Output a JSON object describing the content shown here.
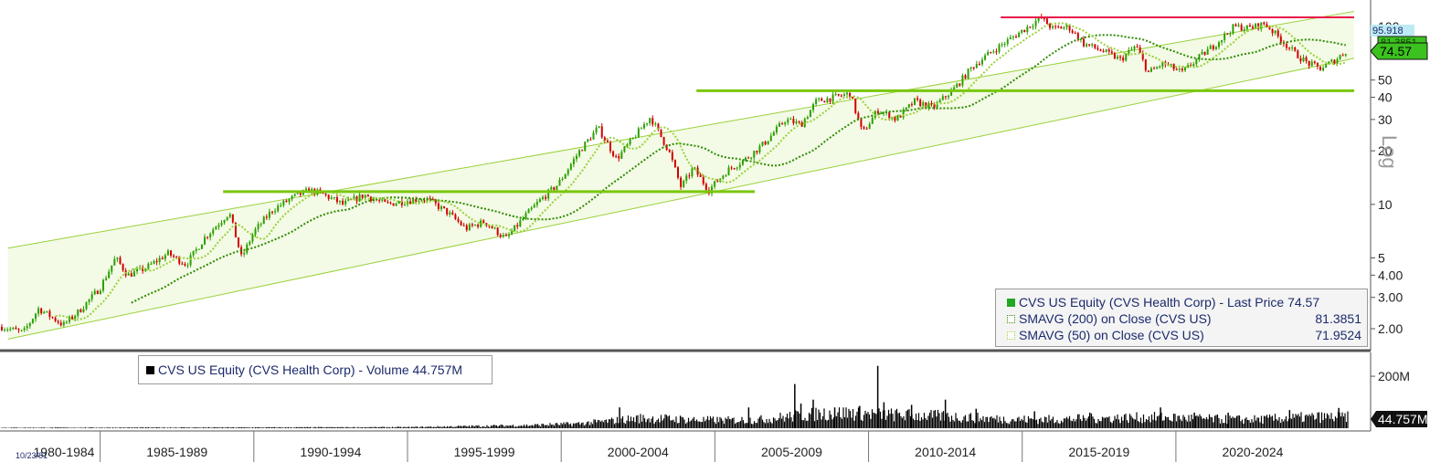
{
  "chart_data": [
    {
      "type": "candlestick",
      "series_name": "CVS US Equity (CVS Health Corp) - Last Price",
      "last_price": 74.57,
      "scale": "log",
      "scale_label": "Log",
      "ylim": [
        1.7,
        130
      ],
      "y_ticks": [
        {
          "value": 2,
          "label": "2.00"
        },
        {
          "value": 3,
          "label": "3.00"
        },
        {
          "value": 4,
          "label": "4.00"
        },
        {
          "value": 5,
          "label": "5"
        },
        {
          "value": 10,
          "label": "10"
        },
        {
          "value": 20,
          "label": "20"
        },
        {
          "value": 30,
          "label": "30"
        },
        {
          "value": 40,
          "label": "40"
        },
        {
          "value": 50,
          "label": "50"
        },
        {
          "value": 100,
          "label": "100"
        }
      ],
      "x_periods": [
        "1980-1984",
        "1985-1989",
        "1990-1994",
        "1995-1999",
        "2000-2004",
        "2005-2009",
        "2010-2014",
        "2015-2019",
        "2020-2024"
      ],
      "x_start_date": "10/23/81",
      "price_path": [
        [
          1981.8,
          2.05
        ],
        [
          1982.5,
          1.9
        ],
        [
          1983.0,
          2.6
        ],
        [
          1983.8,
          2.1
        ],
        [
          1984.3,
          2.5
        ],
        [
          1985.0,
          3.4
        ],
        [
          1985.5,
          5.0
        ],
        [
          1985.9,
          4.0
        ],
        [
          1986.5,
          4.4
        ],
        [
          1987.2,
          5.3
        ],
        [
          1987.8,
          4.6
        ],
        [
          1988.4,
          6.5
        ],
        [
          1989.2,
          9.0
        ],
        [
          1989.6,
          5.0
        ],
        [
          1990.0,
          7.0
        ],
        [
          1990.6,
          9.3
        ],
        [
          1991.3,
          11.0
        ],
        [
          1991.8,
          12.0
        ],
        [
          1992.2,
          11.5
        ],
        [
          1992.9,
          10.0
        ],
        [
          1993.6,
          11.3
        ],
        [
          1994.3,
          10.0
        ],
        [
          1995.0,
          10.5
        ],
        [
          1995.6,
          10.8
        ],
        [
          1996.3,
          9.0
        ],
        [
          1996.9,
          7.3
        ],
        [
          1997.5,
          8.0
        ],
        [
          1998.2,
          6.4
        ],
        [
          1998.8,
          8.5
        ],
        [
          1999.3,
          10.5
        ],
        [
          1999.9,
          13.0
        ],
        [
          2000.6,
          20.0
        ],
        [
          2001.2,
          27.0
        ],
        [
          2001.8,
          18.0
        ],
        [
          2002.3,
          23.0
        ],
        [
          2002.9,
          31.0
        ],
        [
          2003.5,
          20.0
        ],
        [
          2003.9,
          12.5
        ],
        [
          2004.3,
          16.0
        ],
        [
          2004.8,
          12.0
        ],
        [
          2005.4,
          15.5
        ],
        [
          2006.0,
          18.0
        ],
        [
          2006.6,
          22.0
        ],
        [
          2007.3,
          30.0
        ],
        [
          2007.8,
          28.0
        ],
        [
          2008.3,
          38.0
        ],
        [
          2008.9,
          40.0
        ],
        [
          2009.4,
          42.0
        ],
        [
          2009.8,
          25.0
        ],
        [
          2010.3,
          34.0
        ],
        [
          2010.9,
          30.0
        ],
        [
          2011.5,
          38.0
        ],
        [
          2012.1,
          35.0
        ],
        [
          2012.8,
          45.0
        ],
        [
          2013.4,
          60.0
        ],
        [
          2014.0,
          72.0
        ],
        [
          2014.6,
          85.0
        ],
        [
          2015.2,
          100.0
        ],
        [
          2015.6,
          112.0
        ],
        [
          2016.0,
          97.0
        ],
        [
          2016.5,
          100.0
        ],
        [
          2017.0,
          80.0
        ],
        [
          2017.6,
          73.0
        ],
        [
          2018.2,
          65.0
        ],
        [
          2018.7,
          78.0
        ],
        [
          2019.1,
          55.0
        ],
        [
          2019.6,
          62.0
        ],
        [
          2020.2,
          55.0
        ],
        [
          2020.8,
          68.0
        ],
        [
          2021.3,
          80.0
        ],
        [
          2021.9,
          100.0
        ],
        [
          2022.4,
          98.0
        ],
        [
          2022.9,
          104.0
        ],
        [
          2023.4,
          85.0
        ],
        [
          2023.9,
          70.0
        ],
        [
          2024.3,
          62.0
        ],
        [
          2024.7,
          58.0
        ],
        [
          2025.2,
          65.0
        ],
        [
          2025.6,
          74.57
        ]
      ],
      "sma200": {
        "name": "SMAVG (200)  on Close (CVS US)",
        "last": 81.3851,
        "color": "#2e8b00"
      },
      "sma50": {
        "name": "SMAVG (50)  on Close (CVS US)",
        "last": 71.9524,
        "color": "#9ad13a"
      },
      "candle_up_color": "#2aa000",
      "candle_down_color": "#d10000",
      "trend_channel_color": "#9ad13a",
      "channel_fill_color": "#f3fae6",
      "resistance_line": {
        "value": 120,
        "from": 2014.3,
        "to": 2025.8,
        "color": "#e8174a"
      },
      "support_lines": [
        {
          "value": 11.8,
          "from": 1989.0,
          "to": 2006.3,
          "color": "#7ac70c"
        },
        {
          "value": 43.5,
          "from": 2004.4,
          "to": 2025.8,
          "color": "#7ac70c"
        }
      ],
      "price_tags": [
        {
          "label": "95.918",
          "value": 95.918,
          "color": "#bdeaf3"
        },
        {
          "label": "74.57",
          "value": 74.57,
          "color": "#3cc21e"
        },
        {
          "label": "81.3851",
          "value": 81.3851,
          "color": "#3cc21e"
        }
      ],
      "legend": {
        "rows": [
          {
            "label": "CVS US Equity (CVS Health Corp) - Last Price 74.57",
            "value": "",
            "swatch": "#22a722"
          },
          {
            "label": "SMAVG (200)  on Close (CVS US)",
            "value": "81.3851",
            "swatch": "#2e8b00"
          },
          {
            "label": "SMAVG (50)  on Close (CVS US)",
            "value": "71.9524",
            "swatch": "#9ad13a"
          }
        ]
      }
    },
    {
      "type": "bar",
      "series_name": "CVS US Equity (CVS Health Corp) - Volume",
      "legend_label": "CVS US Equity (CVS Health Corp) - Volume 44.757M",
      "last_value_label": "44.757M",
      "last_value": 44.757,
      "units": "M",
      "y_ticks": [
        {
          "value": 200,
          "label": "200M"
        }
      ],
      "ylim": [
        0,
        260
      ],
      "volume_profile": [
        [
          1981.8,
          2
        ],
        [
          1990.0,
          3
        ],
        [
          1995.0,
          4
        ],
        [
          1997.0,
          8
        ],
        [
          1999.0,
          12
        ],
        [
          2000.5,
          18
        ],
        [
          2001.5,
          28
        ],
        [
          2002.5,
          40
        ],
        [
          2003.5,
          38
        ],
        [
          2004.5,
          33
        ],
        [
          2005.5,
          32
        ],
        [
          2006.5,
          35
        ],
        [
          2007.5,
          48
        ],
        [
          2008.5,
          60
        ],
        [
          2009.5,
          62
        ],
        [
          2010.5,
          55
        ],
        [
          2011.5,
          52
        ],
        [
          2012.5,
          48
        ],
        [
          2013.5,
          42
        ],
        [
          2014.5,
          36
        ],
        [
          2015.5,
          35
        ],
        [
          2016.5,
          37
        ],
        [
          2017.5,
          40
        ],
        [
          2018.5,
          42
        ],
        [
          2019.5,
          44
        ],
        [
          2020.5,
          40
        ],
        [
          2021.5,
          36
        ],
        [
          2022.5,
          35
        ],
        [
          2023.5,
          40
        ],
        [
          2024.5,
          45
        ],
        [
          2025.6,
          44.757
        ]
      ],
      "spikes": [
        [
          2001.9,
          80
        ],
        [
          2006.1,
          80
        ],
        [
          2007.6,
          170
        ],
        [
          2007.8,
          95
        ],
        [
          2008.2,
          110
        ],
        [
          2008.9,
          80
        ],
        [
          2009.7,
          85
        ],
        [
          2010.3,
          240
        ],
        [
          2010.5,
          100
        ],
        [
          2011.4,
          90
        ],
        [
          2012.5,
          110
        ],
        [
          2013.5,
          75
        ],
        [
          2015.4,
          65
        ],
        [
          2017.2,
          60
        ],
        [
          2019.5,
          80
        ],
        [
          2020.6,
          60
        ],
        [
          2021.7,
          60
        ],
        [
          2023.7,
          70
        ],
        [
          2025.3,
          78
        ]
      ]
    }
  ]
}
